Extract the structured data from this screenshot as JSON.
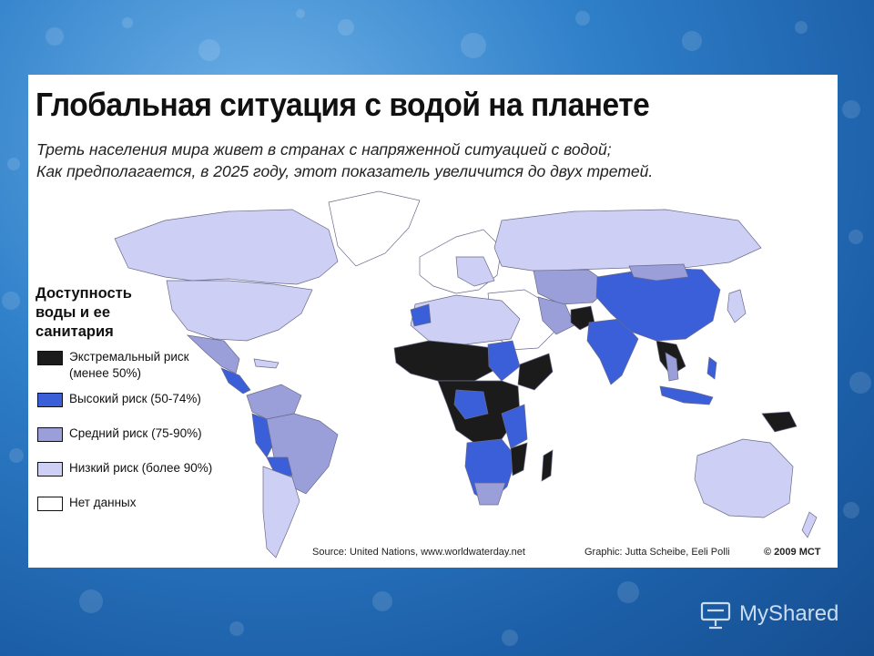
{
  "title": "Глобальная ситуация с водой на планете",
  "subtitle": [
    "Треть населения мира живет в странах с напряженной ситуацией с водой;",
    "Как предполагается, в 2025 году, этот показатель увеличится до двух третей."
  ],
  "legend": {
    "title": "Доступность воды  и ее санитария",
    "items": [
      {
        "label": "Экстремальный риск (менее 50%)",
        "color": "#1b1b1b"
      },
      {
        "label": "Высокий риск (50-74%)",
        "color": "#3b5fd8"
      },
      {
        "label": "Средний риск (75-90%)",
        "color": "#9a9fd9"
      },
      {
        "label": "Низкий риск (более 90%)",
        "color": "#cdd0f4"
      },
      {
        "label": "Нет данных",
        "color": "#ffffff"
      }
    ]
  },
  "credits": {
    "source": "Source: United Nations, www.worldwaterday.net",
    "graphic": "Graphic: Jutta Scheibe, Eeli Polli",
    "copyright": "© 2009 MCT"
  },
  "watermark": {
    "text": "MyShared"
  }
}
